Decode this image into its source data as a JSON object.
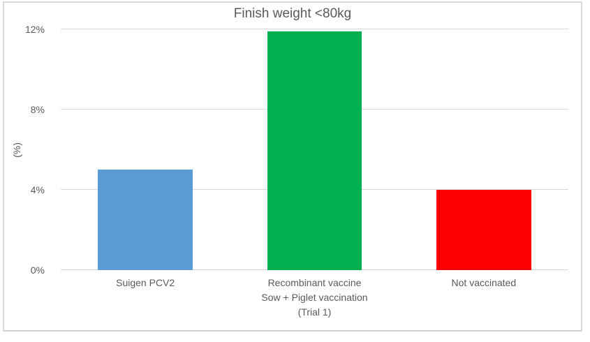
{
  "chart_data": {
    "type": "bar",
    "title": "Finish weight <80kg",
    "xlabel": "",
    "ylabel": "(%)",
    "categories": [
      "Suigen PCV2",
      "Recombinant vaccine\nSow + Piglet vaccination\n(Trial 1)",
      "Not vaccinated"
    ],
    "values": [
      5,
      11.9,
      4
    ],
    "bar_colors": [
      "#5B9BD5",
      "#00B050",
      "#FF0000"
    ],
    "ylim": [
      0,
      12
    ],
    "yticks": [
      {
        "label": "0%",
        "value": 0
      },
      {
        "label": "4%",
        "value": 4
      },
      {
        "label": "8%",
        "value": 8
      },
      {
        "label": "12%",
        "value": 12
      }
    ],
    "grid": true,
    "legend": false,
    "colors": {
      "text": "#595959",
      "gridline": "#D9D9D9",
      "frame_border": "#D9D9D9",
      "background": "#FFFFFF"
    }
  }
}
